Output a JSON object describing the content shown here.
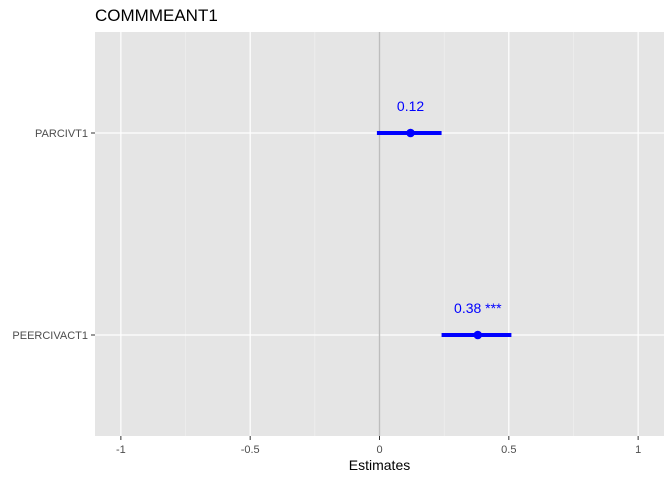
{
  "chart_data": {
    "type": "forest",
    "title": "COMMMEANT1",
    "xlabel": "Estimates",
    "ylabel": "",
    "xlim": [
      -1.1,
      1.1
    ],
    "x_ticks": [
      -1,
      -0.5,
      0,
      0.5,
      1
    ],
    "x_tick_labels": [
      "-1",
      "-0.5",
      "0",
      "0.5",
      "1"
    ],
    "reference_line": 0,
    "grid": true,
    "point_color": "#0000ff",
    "reference_line_color": "#bdbdbd",
    "panel_background": "#e5e5e5",
    "terms": [
      {
        "name": "PARCIVT1",
        "estimate": 0.12,
        "conf_low": -0.01,
        "conf_high": 0.24,
        "label": "0.12"
      },
      {
        "name": "PEERCIVACT1",
        "estimate": 0.38,
        "conf_low": 0.24,
        "conf_high": 0.51,
        "label": "0.38 ***"
      }
    ]
  }
}
